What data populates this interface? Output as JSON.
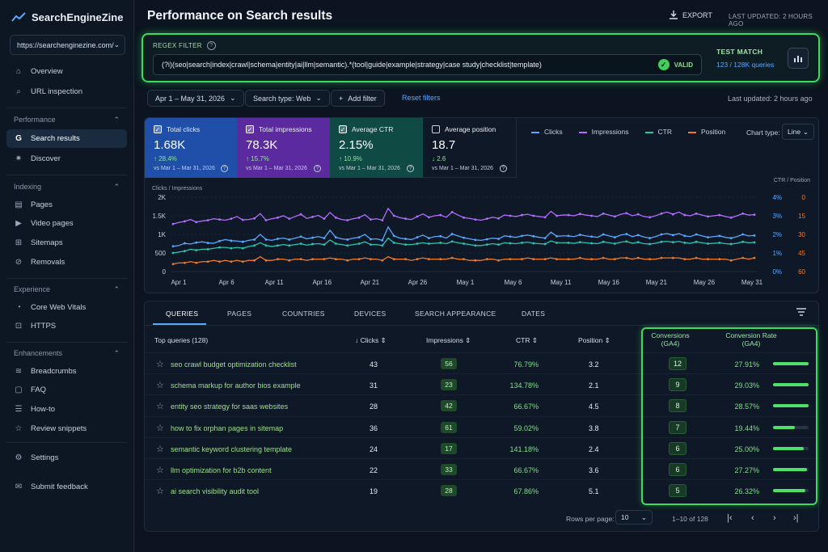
{
  "brand": {
    "name": "SearchEngineZine"
  },
  "site_selector": {
    "value": "https://searchenginezine.com/"
  },
  "sidebar": {
    "top_items": [
      {
        "label": "Overview",
        "icon": "home-icon"
      },
      {
        "label": "URL inspection",
        "icon": "search-icon"
      }
    ],
    "sections": [
      {
        "title": "Performance",
        "items": [
          {
            "label": "Search results",
            "icon": "google-g-icon",
            "active": true
          },
          {
            "label": "Discover",
            "icon": "sparkle-icon"
          }
        ]
      },
      {
        "title": "Indexing",
        "items": [
          {
            "label": "Pages",
            "icon": "pages-icon"
          },
          {
            "label": "Video pages",
            "icon": "video-icon"
          },
          {
            "label": "Sitemaps",
            "icon": "sitemap-icon"
          },
          {
            "label": "Removals",
            "icon": "removal-icon"
          }
        ]
      },
      {
        "title": "Experience",
        "items": [
          {
            "label": "Core Web Vitals",
            "icon": "gauge-icon"
          },
          {
            "label": "HTTPS",
            "icon": "lock-icon"
          }
        ]
      },
      {
        "title": "Enhancements",
        "items": [
          {
            "label": "Breadcrumbs",
            "icon": "layers-icon"
          },
          {
            "label": "FAQ",
            "icon": "faq-icon"
          },
          {
            "label": "How-to",
            "icon": "howto-icon"
          },
          {
            "label": "Review snippets",
            "icon": "review-icon"
          }
        ]
      }
    ],
    "bottom_items": [
      {
        "label": "Settings",
        "icon": "gear-icon"
      },
      {
        "label": "Submit feedback",
        "icon": "feedback-icon"
      }
    ]
  },
  "header": {
    "title": "Performance on Search results",
    "export_label": "EXPORT",
    "last_updated": "LAST UPDATED: 2 HOURS AGO"
  },
  "regex": {
    "label": "REGEX FILTER",
    "value": "(?i)(seo|search|index|crawl|schema|entity|ai|llm|semantic).*(tool|guide|example|strategy|case study|checklist|template)",
    "valid_label": "VALID",
    "test_match_label": "TEST MATCH",
    "test_match_value": "123 / 128K queries"
  },
  "filters": {
    "date_range": "Apr 1 – May 31, 2026",
    "search_type": "Search type: Web",
    "add_filter": "Add filter",
    "reset": "Reset filters",
    "last_updated": "Last updated: 2 hours ago"
  },
  "metrics": [
    {
      "label": "Total clicks",
      "value": "1.68K",
      "delta": "↑ 28.4%",
      "vs": "vs Mar 1 – Mar 31, 2026",
      "checked": true,
      "bg": "#1f4fa8",
      "delta_color": "#8ee59a"
    },
    {
      "label": "Total impressions",
      "value": "78.3K",
      "delta": "↑ 15.7%",
      "vs": "vs Mar 1 – Mar 31, 2026",
      "checked": true,
      "bg": "#5a2a9e",
      "delta_color": "#8ee59a"
    },
    {
      "label": "Average CTR",
      "value": "2.15%",
      "delta": "↑ 10.9%",
      "vs": "vs Mar 1 – Mar 31, 2026",
      "checked": true,
      "bg": "#0f4a45",
      "delta_color": "#8ee59a"
    },
    {
      "label": "Average position",
      "value": "18.7",
      "delta": "↓ 2.6",
      "vs": "vs Mar 1 – Mar 31, 2026",
      "checked": false,
      "bg": "#0e1826",
      "delta_color": "#8ee59a"
    }
  ],
  "legend": [
    {
      "name": "Clicks",
      "color": "#5aa8ff"
    },
    {
      "name": "Impressions",
      "color": "#b56cff"
    },
    {
      "name": "CTR",
      "color": "#2bc4b0"
    },
    {
      "name": "Position",
      "color": "#f07a2a"
    }
  ],
  "chart_controls": {
    "type_label": "Chart type:",
    "type_value": "Line"
  },
  "chart_data": {
    "type": "line",
    "left_axis_title": "Clicks / Impressions",
    "right_axis_title": "CTR / Position",
    "left_ticks": [
      "2K",
      "1.5K",
      "1K",
      "500",
      "0"
    ],
    "ctr_ticks": [
      "4%",
      "3%",
      "2%",
      "1%",
      "0%"
    ],
    "pos_ticks": [
      "0",
      "15",
      "30",
      "45",
      "60"
    ],
    "x_ticks": [
      "Apr 1",
      "Apr 6",
      "Apr 11",
      "Apr 16",
      "Apr 21",
      "Apr 26",
      "May 1",
      "May 6",
      "May 11",
      "May 16",
      "May 21",
      "May 26",
      "May 31"
    ],
    "ylim": [
      0,
      2000
    ],
    "series": [
      {
        "name": "Impressions",
        "color": "#b56cff",
        "values": [
          1280,
          1320,
          1350,
          1400,
          1330,
          1360,
          1380,
          1420,
          1400,
          1380,
          1420,
          1480,
          1390,
          1400,
          1430,
          1560,
          1380,
          1420,
          1450,
          1500,
          1420,
          1480,
          1540,
          1430,
          1470,
          1510,
          1420,
          1590,
          1450,
          1400,
          1380,
          1420,
          1450,
          1530,
          1400,
          1420,
          1380,
          1700,
          1500,
          1450,
          1420,
          1400,
          1480,
          1550,
          1460,
          1500,
          1520,
          1460,
          1600,
          1520,
          1450,
          1430,
          1400,
          1380,
          1420,
          1460,
          1430,
          1520,
          1500,
          1480,
          1520,
          1540,
          1500,
          1480,
          1460,
          1620,
          1500,
          1520,
          1520,
          1500,
          1550,
          1520,
          1500,
          1480,
          1560,
          1520,
          1480,
          1540,
          1570,
          1500,
          1540,
          1480,
          1460,
          1500,
          1560,
          1600,
          1540,
          1600,
          1520,
          1500,
          1560,
          1520,
          1480,
          1500,
          1520,
          1480,
          1450,
          1500,
          1560,
          1520,
          1530
        ]
      },
      {
        "name": "Clicks",
        "color": "#5aa8ff",
        "values": [
          680,
          700,
          760,
          740,
          780,
          800,
          770,
          760,
          820,
          860,
          830,
          820,
          800,
          840,
          860,
          1000,
          860,
          840,
          880,
          900,
          860,
          900,
          940,
          880,
          910,
          940,
          900,
          1110,
          920,
          880,
          860,
          900,
          920,
          1000,
          870,
          880,
          840,
          1200,
          960,
          900,
          880,
          860,
          920,
          980,
          900,
          940,
          950,
          900,
          1010,
          960,
          910,
          880,
          850,
          840,
          870,
          900,
          880,
          960,
          940,
          920,
          960,
          980,
          950,
          920,
          900,
          1060,
          950,
          960,
          960,
          940,
          990,
          960,
          940,
          920,
          1000,
          960,
          920,
          980,
          1010,
          940,
          980,
          930,
          900,
          940,
          1000,
          1020,
          980,
          1020,
          960,
          940,
          1000,
          960,
          920,
          940,
          960,
          920,
          900,
          940,
          1000,
          960,
          970
        ]
      },
      {
        "name": "CTR",
        "color": "#2bc4b0",
        "values": [
          1.0,
          1.05,
          1.1,
          1.2,
          1.15,
          1.2,
          1.2,
          1.25,
          1.3,
          1.3,
          1.25,
          1.3,
          1.25,
          1.35,
          1.4,
          1.55,
          1.4,
          1.35,
          1.4,
          1.45,
          1.4,
          1.45,
          1.5,
          1.42,
          1.48,
          1.5,
          1.45,
          1.7,
          1.5,
          1.45,
          1.4,
          1.45,
          1.5,
          1.6,
          1.45,
          1.45,
          1.4,
          1.8,
          1.55,
          1.5,
          1.45,
          1.45,
          1.5,
          1.55,
          1.5,
          1.52,
          1.55,
          1.5,
          1.62,
          1.55,
          1.5,
          1.45,
          1.4,
          1.4,
          1.45,
          1.5,
          1.45,
          1.55,
          1.52,
          1.5,
          1.55,
          1.58,
          1.52,
          1.5,
          1.48,
          1.65,
          1.55,
          1.55,
          1.55,
          1.52,
          1.58,
          1.55,
          1.52,
          1.5,
          1.6,
          1.55,
          1.5,
          1.58,
          1.62,
          1.52,
          1.58,
          1.5,
          1.48,
          1.52,
          1.6,
          1.62,
          1.58,
          1.62,
          1.55,
          1.52,
          1.6,
          1.55,
          1.5,
          1.52,
          1.55,
          1.5,
          1.48,
          1.52,
          1.6,
          1.55,
          1.57
        ]
      },
      {
        "name": "Position",
        "color": "#f07a2a",
        "values": [
          54,
          53,
          53,
          52,
          53,
          52,
          52,
          51,
          52,
          51,
          52,
          51,
          52,
          51,
          51,
          48,
          51,
          51,
          50,
          50,
          51,
          50,
          50,
          51,
          50,
          50,
          50,
          49,
          50,
          50,
          51,
          50,
          50,
          49,
          50,
          50,
          51,
          48,
          50,
          50,
          50,
          51,
          50,
          49,
          50,
          50,
          50,
          50,
          49,
          50,
          50,
          51,
          51,
          51,
          50,
          50,
          51,
          50,
          50,
          50,
          50,
          49,
          50,
          50,
          50,
          49,
          50,
          50,
          50,
          50,
          49,
          50,
          50,
          50,
          49,
          50,
          50,
          49,
          49,
          50,
          49,
          50,
          50,
          50,
          49,
          49,
          49,
          49,
          50,
          50,
          49,
          50,
          50,
          50,
          50,
          50,
          51,
          50,
          49,
          50,
          49
        ]
      }
    ]
  },
  "tabs": [
    "QUERIES",
    "PAGES",
    "COUNTRIES",
    "DEVICES",
    "SEARCH APPEARANCE",
    "DATES"
  ],
  "table": {
    "headers": {
      "query": "Top queries (128)",
      "clicks": "↓ Clicks ⇕",
      "impressions": "Impressions ⇕",
      "ctr": "CTR ⇕",
      "position": "Position ⇕",
      "conversions": "Conversions",
      "conversions_sub": "(GA4)",
      "conv_rate": "Conversion Rate",
      "conv_rate_sub": "(GA4)"
    },
    "rows": [
      {
        "query": "seo crawl budget optimization checklist",
        "clicks": "43",
        "impressions": "56",
        "ctr": "76.79%",
        "position": "3.2",
        "conversions": "12",
        "conv_rate": "27.91%",
        "rate_fill": 1.0
      },
      {
        "query": "schema markup for author bios example",
        "clicks": "31",
        "impressions": "23",
        "ctr": "134.78%",
        "position": "2.1",
        "conversions": "9",
        "conv_rate": "29.03%",
        "rate_fill": 1.0
      },
      {
        "query": "entity seo strategy for saas websites",
        "clicks": "28",
        "impressions": "42",
        "ctr": "66.67%",
        "position": "4.5",
        "conversions": "8",
        "conv_rate": "28.57%",
        "rate_fill": 1.0
      },
      {
        "query": "how to fix orphan pages in sitemap",
        "clicks": "36",
        "impressions": "61",
        "ctr": "59.02%",
        "position": "3.8",
        "conversions": "7",
        "conv_rate": "19.44%",
        "rate_fill": 0.62
      },
      {
        "query": "semantic keyword clustering template",
        "clicks": "24",
        "impressions": "17",
        "ctr": "141.18%",
        "position": "2.4",
        "conversions": "6",
        "conv_rate": "25.00%",
        "rate_fill": 0.86
      },
      {
        "query": "llm optimization for b2b content",
        "clicks": "22",
        "impressions": "33",
        "ctr": "66.67%",
        "position": "3.6",
        "conversions": "6",
        "conv_rate": "27.27%",
        "rate_fill": 0.95
      },
      {
        "query": "ai search visibility audit tool",
        "clicks": "19",
        "impressions": "28",
        "ctr": "67.86%",
        "position": "5.1",
        "conversions": "5",
        "conv_rate": "26.32%",
        "rate_fill": 0.9
      }
    ]
  },
  "pagination": {
    "rows_label": "Rows per page:",
    "rows_value": "10",
    "range": "1–10 of 128"
  }
}
